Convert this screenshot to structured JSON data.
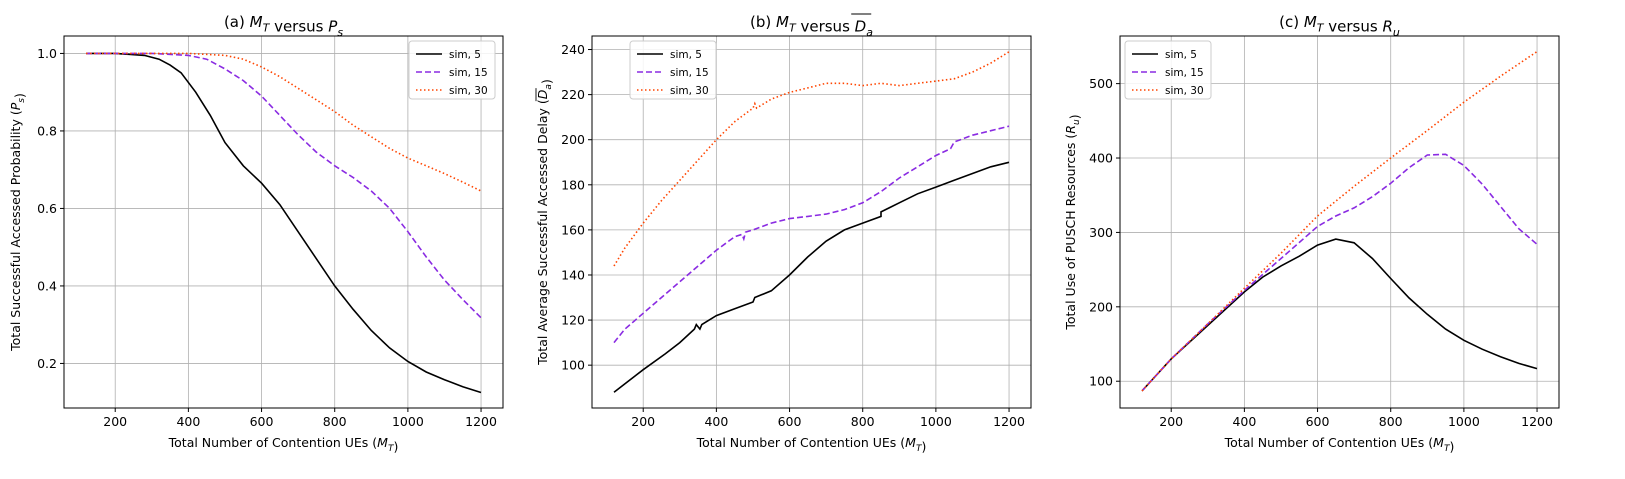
{
  "chart_data": [
    {
      "type": "line",
      "title": {
        "pre": "(a) ",
        "var": "M",
        "sub": "T",
        "mid": " versus ",
        "var2": "P",
        "sub2": "s",
        "over": false
      },
      "xlabel": {
        "pre": "Total Number of Contention UEs (",
        "var": "M",
        "sub": "T",
        "post": ")"
      },
      "ylabel": {
        "pre": "Total Successful Accessed Probability (",
        "var": "P",
        "sub": "s",
        "post": ")",
        "over": false
      },
      "xlim": [
        60,
        1260
      ],
      "ylim": [
        0.085,
        1.045
      ],
      "xticks": [
        200,
        400,
        600,
        800,
        1000,
        1200
      ],
      "yticks": [
        0.2,
        0.4,
        0.6,
        0.8,
        1.0
      ],
      "ytick_labels": [
        "0.2",
        "0.4",
        "0.6",
        "0.8",
        "1.0"
      ],
      "grid": true,
      "legend": "top-right",
      "series": [
        {
          "name": "sim, 5",
          "color": "#000000",
          "dash": "solid",
          "x": [
            120,
            200,
            280,
            320,
            350,
            380,
            420,
            460,
            500,
            550,
            600,
            650,
            700,
            750,
            800,
            850,
            900,
            950,
            1000,
            1050,
            1100,
            1150,
            1200
          ],
          "y": [
            1.0,
            1.0,
            0.995,
            0.985,
            0.97,
            0.95,
            0.9,
            0.84,
            0.77,
            0.71,
            0.665,
            0.61,
            0.54,
            0.47,
            0.4,
            0.34,
            0.285,
            0.24,
            0.205,
            0.178,
            0.158,
            0.14,
            0.125
          ]
        },
        {
          "name": "sim, 15",
          "color": "#8A2BE2",
          "dash": "dashed",
          "x": [
            120,
            200,
            300,
            400,
            450,
            500,
            550,
            600,
            650,
            700,
            750,
            800,
            850,
            900,
            950,
            1000,
            1050,
            1100,
            1150,
            1200
          ],
          "y": [
            1.0,
            1.0,
            1.0,
            0.995,
            0.985,
            0.96,
            0.93,
            0.89,
            0.84,
            0.79,
            0.745,
            0.71,
            0.68,
            0.645,
            0.6,
            0.54,
            0.475,
            0.415,
            0.365,
            0.318
          ]
        },
        {
          "name": "sim, 30",
          "color": "#FF4500",
          "dash": "dotted",
          "x": [
            120,
            200,
            300,
            400,
            500,
            550,
            600,
            650,
            700,
            750,
            800,
            850,
            900,
            950,
            1000,
            1050,
            1100,
            1150,
            1200
          ],
          "y": [
            1.0,
            1.0,
            1.0,
            1.0,
            0.995,
            0.985,
            0.965,
            0.94,
            0.91,
            0.88,
            0.85,
            0.815,
            0.785,
            0.755,
            0.73,
            0.71,
            0.69,
            0.668,
            0.645
          ]
        }
      ]
    },
    {
      "type": "line",
      "title": {
        "pre": "(b) ",
        "var": "M",
        "sub": "T",
        "mid": " versus ",
        "var2": "D",
        "sub2": "a",
        "over": true
      },
      "xlabel": {
        "pre": "Total Number of Contention UEs (",
        "var": "M",
        "sub": "T",
        "post": ")"
      },
      "ylabel": {
        "pre": "Total Average Successful Accessed Delay (",
        "var": "D",
        "sub": "a",
        "post": ")",
        "over": true
      },
      "xlim": [
        60,
        1260
      ],
      "ylim": [
        81,
        246
      ],
      "xticks": [
        200,
        400,
        600,
        800,
        1000,
        1200
      ],
      "yticks": [
        100,
        120,
        140,
        160,
        180,
        200,
        220,
        240
      ],
      "ytick_labels": [
        "100",
        "120",
        "140",
        "160",
        "180",
        "200",
        "220",
        "240"
      ],
      "grid": true,
      "legend": "top-left",
      "series": [
        {
          "name": "sim, 5",
          "color": "#000000",
          "dash": "solid",
          "x": [
            120,
            200,
            260,
            300,
            340,
            345,
            355,
            360,
            400,
            450,
            500,
            505,
            550,
            600,
            650,
            700,
            750,
            800,
            850,
            850,
            900,
            950,
            1000,
            1050,
            1100,
            1150,
            1200
          ],
          "y": [
            88,
            98,
            105,
            110,
            116,
            118,
            116,
            118,
            122,
            125,
            128,
            130,
            133,
            140,
            148,
            155,
            160,
            163,
            166,
            168,
            172,
            176,
            179,
            182,
            185,
            188,
            190
          ]
        },
        {
          "name": "sim, 15",
          "color": "#8A2BE2",
          "dash": "dashed",
          "x": [
            120,
            150,
            200,
            250,
            300,
            350,
            400,
            450,
            470,
            475,
            480,
            500,
            550,
            600,
            650,
            700,
            750,
            800,
            850,
            900,
            950,
            1000,
            1040,
            1050,
            1100,
            1150,
            1200
          ],
          "y": [
            110,
            116,
            123,
            130,
            137,
            144,
            151,
            157,
            158,
            156,
            159,
            160,
            163,
            165,
            166,
            167,
            169,
            172,
            177,
            183,
            188,
            193,
            196,
            199,
            202,
            204,
            206
          ]
        },
        {
          "name": "sim, 30",
          "color": "#FF4500",
          "dash": "dotted",
          "x": [
            120,
            150,
            200,
            250,
            300,
            350,
            400,
            450,
            500,
            505,
            510,
            550,
            600,
            650,
            700,
            750,
            800,
            850,
            900,
            950,
            1000,
            1050,
            1100,
            1150,
            1200
          ],
          "y": [
            144,
            152,
            163,
            173,
            182,
            191,
            200,
            208,
            214,
            216,
            214,
            218,
            221,
            223,
            225,
            225,
            224,
            225,
            224,
            225,
            226,
            227,
            230,
            234,
            239
          ]
        }
      ]
    },
    {
      "type": "line",
      "title": {
        "pre": "(c) ",
        "var": "M",
        "sub": "T",
        "mid": " versus ",
        "var2": "R",
        "sub2": "u",
        "over": false
      },
      "xlabel": {
        "pre": "Total Number of Contention UEs (",
        "var": "M",
        "sub": "T",
        "post": ")"
      },
      "ylabel": {
        "pre": "Total Use of PUSCH Resources (",
        "var": "R",
        "sub": "u",
        "post": ")",
        "over": false
      },
      "xlim": [
        60,
        1260
      ],
      "ylim": [
        64,
        564
      ],
      "xticks": [
        200,
        400,
        600,
        800,
        1000,
        1200
      ],
      "yticks": [
        100,
        200,
        300,
        400,
        500
      ],
      "ytick_labels": [
        "100",
        "200",
        "300",
        "400",
        "500"
      ],
      "grid": true,
      "legend": "top-left",
      "series": [
        {
          "name": "sim, 5",
          "color": "#000000",
          "dash": "solid",
          "x": [
            120,
            200,
            300,
            400,
            450,
            500,
            550,
            600,
            650,
            700,
            750,
            800,
            850,
            900,
            950,
            1000,
            1050,
            1100,
            1150,
            1200
          ],
          "y": [
            87,
            130,
            175,
            220,
            240,
            255,
            268,
            283,
            291,
            286,
            265,
            238,
            212,
            190,
            170,
            155,
            143,
            133,
            124,
            117
          ]
        },
        {
          "name": "sim, 15",
          "color": "#8A2BE2",
          "dash": "dashed",
          "x": [
            120,
            200,
            300,
            400,
            500,
            600,
            650,
            700,
            750,
            800,
            850,
            900,
            950,
            1000,
            1050,
            1100,
            1150,
            1200
          ],
          "y": [
            87,
            130,
            177,
            222,
            265,
            308,
            322,
            333,
            348,
            366,
            387,
            404,
            405,
            390,
            365,
            335,
            305,
            284
          ]
        },
        {
          "name": "sim, 30",
          "color": "#FF4500",
          "dash": "dotted",
          "x": [
            120,
            200,
            300,
            400,
            500,
            600,
            700,
            800,
            900,
            1000,
            1100,
            1200
          ],
          "y": [
            87,
            130,
            177,
            225,
            272,
            322,
            362,
            400,
            437,
            475,
            510,
            543
          ]
        }
      ]
    }
  ]
}
